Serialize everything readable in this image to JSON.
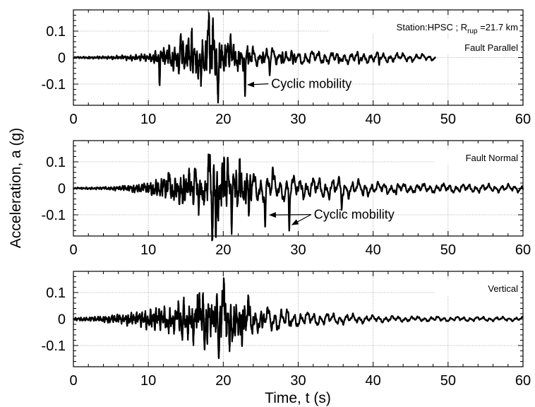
{
  "chart_data": {
    "type": "line",
    "xlabel": "Time, t (s)",
    "ylabel": "Acceleration, a (g)",
    "xlim": [
      0,
      60
    ],
    "ylim": [
      -0.18,
      0.18
    ],
    "x_ticks": [
      0,
      10,
      20,
      30,
      40,
      50,
      60
    ],
    "y_ticks": [
      {
        "value": 0.1,
        "label": "0.1"
      },
      {
        "value": 0,
        "label": "0"
      },
      {
        "value": -0.1,
        "label": "-0.1"
      }
    ],
    "grid": true,
    "line_color": "#000000",
    "panels": [
      {
        "label": "Fault Parallel",
        "header": {
          "prefix": "Station:HPSC ; R",
          "subscript": "rup",
          "suffix": " =21.7 km"
        },
        "end_time": 48.3,
        "envelope": [
          [
            0,
            0.004
          ],
          [
            5,
            0.008
          ],
          [
            10,
            0.018
          ],
          [
            11.5,
            0.045
          ],
          [
            13,
            0.06
          ],
          [
            15,
            0.085
          ],
          [
            17,
            0.095
          ],
          [
            18.2,
            0.13
          ],
          [
            19,
            0.11
          ],
          [
            20.5,
            0.075
          ],
          [
            22,
            0.06
          ],
          [
            24,
            0.045
          ],
          [
            27,
            0.04
          ],
          [
            30,
            0.032
          ],
          [
            35,
            0.028
          ],
          [
            40,
            0.024
          ],
          [
            45,
            0.018
          ],
          [
            48.3,
            0.012
          ]
        ],
        "spikes": [
          [
            11.5,
            -0.08
          ],
          [
            14.3,
            0.07
          ],
          [
            15.8,
            0.09
          ],
          [
            17.0,
            -0.095
          ],
          [
            18.1,
            0.128
          ],
          [
            18.6,
            0.125
          ],
          [
            19.3,
            -0.105
          ],
          [
            21.0,
            0.085
          ],
          [
            22.9,
            -0.125
          ],
          [
            25.3,
            0.05
          ],
          [
            26.2,
            -0.06
          ],
          [
            27.9,
            0.045
          ],
          [
            29.3,
            -0.045
          ],
          [
            35.4,
            -0.04
          ],
          [
            38.1,
            -0.035
          ],
          [
            40.8,
            -0.025
          ]
        ],
        "annotations": [
          {
            "text": "Cyclic mobility",
            "text_at": [
              26.4,
              -0.115
            ],
            "arrows_to": [
              [
                22.9,
                -0.1
              ]
            ]
          }
        ]
      },
      {
        "label": "Fault Normal",
        "end_time": 60,
        "envelope": [
          [
            0,
            0.004
          ],
          [
            5,
            0.008
          ],
          [
            8,
            0.02
          ],
          [
            10,
            0.03
          ],
          [
            12,
            0.055
          ],
          [
            14,
            0.075
          ],
          [
            16,
            0.09
          ],
          [
            18,
            0.12
          ],
          [
            19,
            0.15
          ],
          [
            20,
            0.14
          ],
          [
            22,
            0.09
          ],
          [
            24,
            0.075
          ],
          [
            26,
            0.06
          ],
          [
            30,
            0.05
          ],
          [
            35,
            0.045
          ],
          [
            40,
            0.028
          ],
          [
            45,
            0.022
          ],
          [
            50,
            0.02
          ],
          [
            55,
            0.018
          ],
          [
            60,
            0.016
          ]
        ],
        "spikes": [
          [
            12.7,
            0.055
          ],
          [
            14.6,
            -0.075
          ],
          [
            16.3,
            0.09
          ],
          [
            17.3,
            -0.1
          ],
          [
            18.2,
            0.12
          ],
          [
            18.5,
            -0.165
          ],
          [
            19.0,
            -0.16
          ],
          [
            20.1,
            0.14
          ],
          [
            21.1,
            -0.13
          ],
          [
            22.2,
            0.11
          ],
          [
            23.4,
            -0.1
          ],
          [
            25.6,
            -0.105
          ],
          [
            26.6,
            0.04
          ],
          [
            28.8,
            -0.145
          ],
          [
            30.5,
            0.035
          ],
          [
            35.8,
            -0.065
          ],
          [
            38.7,
            -0.03
          ],
          [
            43.1,
            -0.025
          ]
        ],
        "annotations": [
          {
            "text": "Cyclic mobility",
            "text_at": [
              32.1,
              -0.115
            ],
            "arrows_to": [
              [
                25.8,
                -0.098
              ],
              [
                28.8,
                -0.135
              ]
            ]
          }
        ]
      },
      {
        "label": "Vertical",
        "end_time": 60,
        "envelope": [
          [
            0,
            0.008
          ],
          [
            3,
            0.012
          ],
          [
            6,
            0.025
          ],
          [
            9,
            0.04
          ],
          [
            12,
            0.06
          ],
          [
            14,
            0.075
          ],
          [
            16,
            0.1
          ],
          [
            18,
            0.12
          ],
          [
            19,
            0.125
          ],
          [
            20,
            0.13
          ],
          [
            21,
            0.11
          ],
          [
            22,
            0.1
          ],
          [
            23,
            0.085
          ],
          [
            25,
            0.06
          ],
          [
            28,
            0.05
          ],
          [
            30,
            0.035
          ],
          [
            35,
            0.025
          ],
          [
            40,
            0.016
          ],
          [
            45,
            0.012
          ],
          [
            50,
            0.011
          ],
          [
            55,
            0.01
          ],
          [
            60,
            0.009
          ]
        ],
        "spikes": [
          [
            14.5,
            -0.09
          ],
          [
            16.8,
            0.1
          ],
          [
            17.5,
            -0.11
          ],
          [
            18.6,
            0.115
          ],
          [
            19.4,
            -0.12
          ],
          [
            20.1,
            0.135
          ],
          [
            20.8,
            -0.11
          ],
          [
            22.5,
            -0.13
          ],
          [
            23.4,
            0.08
          ],
          [
            25.2,
            -0.075
          ],
          [
            28.8,
            -0.045
          ]
        ],
        "annotations": []
      }
    ]
  }
}
